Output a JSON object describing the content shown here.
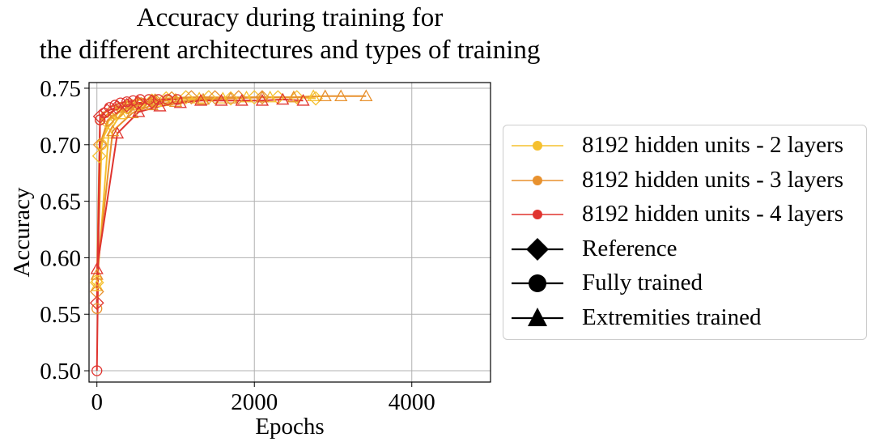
{
  "chart_data": {
    "type": "line",
    "title_lines": [
      "Accuracy during training for",
      "the different architectures and types of training"
    ],
    "xlabel": "Epochs",
    "ylabel": "Accuracy",
    "xlim": [
      -100,
      5000
    ],
    "ylim": [
      0.49,
      0.755
    ],
    "xticks": [
      0,
      2000,
      4000
    ],
    "xtick_labels": [
      "0",
      "2000",
      "4000"
    ],
    "yticks": [
      0.5,
      0.55,
      0.6,
      0.65,
      0.7,
      0.75
    ],
    "ytick_labels": [
      "0.50",
      "0.55",
      "0.60",
      "0.65",
      "0.70",
      "0.75"
    ],
    "grid": true,
    "legend_placement": "right, outside plot",
    "architectures": [
      {
        "name": "8192 hidden units - 2 layers",
        "color": "#f5c02f"
      },
      {
        "name": "8192 hidden units - 3 layers",
        "color": "#e8912e"
      },
      {
        "name": "8192 hidden units - 4 layers",
        "color": "#e0342f"
      }
    ],
    "training_types": [
      {
        "name": "Reference",
        "marker": "diamond"
      },
      {
        "name": "Fully trained",
        "marker": "circle"
      },
      {
        "name": "Extremities trained",
        "marker": "triangle"
      }
    ],
    "series": [
      {
        "architecture": 0,
        "training": 0,
        "x": [
          0,
          30,
          130,
          250,
          380,
          520,
          700,
          880,
          1130,
          1420,
          1700,
          2000,
          2300,
          2540,
          2780
        ],
        "y": [
          0.578,
          0.69,
          0.72,
          0.727,
          0.733,
          0.736,
          0.739,
          0.741,
          0.742,
          0.742,
          0.741,
          0.742,
          0.742,
          0.742,
          0.741
        ]
      },
      {
        "architecture": 0,
        "training": 1,
        "x": [
          0,
          60,
          150,
          260,
          390,
          540,
          720
        ],
        "y": [
          0.58,
          0.7,
          0.722,
          0.728,
          0.732,
          0.735,
          0.737
        ]
      },
      {
        "architecture": 0,
        "training": 2,
        "x": [
          0,
          150,
          300,
          500,
          750,
          1000,
          1300,
          1600,
          1900,
          2200,
          2500,
          2750
        ],
        "y": [
          0.575,
          0.71,
          0.727,
          0.735,
          0.738,
          0.74,
          0.741,
          0.741,
          0.742,
          0.742,
          0.742,
          0.743
        ]
      },
      {
        "architecture": 1,
        "training": 0,
        "x": [
          0,
          40,
          140,
          270,
          400,
          560,
          740,
          950,
          1200,
          1500,
          1800,
          2100
        ],
        "y": [
          0.57,
          0.7,
          0.722,
          0.729,
          0.733,
          0.736,
          0.739,
          0.741,
          0.742,
          0.742,
          0.742,
          0.742
        ]
      },
      {
        "architecture": 1,
        "training": 1,
        "x": [
          0,
          40,
          110,
          200,
          300,
          420,
          560,
          720,
          900
        ],
        "y": [
          0.555,
          0.722,
          0.725,
          0.73,
          0.733,
          0.736,
          0.737,
          0.738,
          0.739
        ]
      },
      {
        "architecture": 1,
        "training": 2,
        "x": [
          0,
          200,
          450,
          700,
          1000,
          1350,
          1700,
          2100,
          2500,
          2900,
          3100,
          3420
        ],
        "y": [
          0.585,
          0.712,
          0.728,
          0.735,
          0.738,
          0.74,
          0.741,
          0.742,
          0.742,
          0.743,
          0.743,
          0.743
        ]
      },
      {
        "architecture": 2,
        "training": 0,
        "x": [
          0,
          40,
          130,
          250,
          380,
          520,
          700
        ],
        "y": [
          0.56,
          0.725,
          0.73,
          0.733,
          0.735,
          0.737,
          0.738
        ]
      },
      {
        "architecture": 2,
        "training": 1,
        "x": [
          0,
          40,
          90,
          160,
          230,
          300,
          380,
          460,
          550,
          660,
          780,
          900,
          1020
        ],
        "y": [
          0.5,
          0.722,
          0.728,
          0.733,
          0.735,
          0.737,
          0.738,
          0.739,
          0.74,
          0.74,
          0.74,
          0.74,
          0.74
        ]
      },
      {
        "architecture": 2,
        "training": 2,
        "x": [
          0,
          260,
          530,
          800,
          1060,
          1320,
          1580,
          1840,
          2100,
          2360,
          2620
        ],
        "y": [
          0.59,
          0.71,
          0.729,
          0.734,
          0.737,
          0.739,
          0.739,
          0.739,
          0.739,
          0.74,
          0.739
        ]
      }
    ]
  }
}
